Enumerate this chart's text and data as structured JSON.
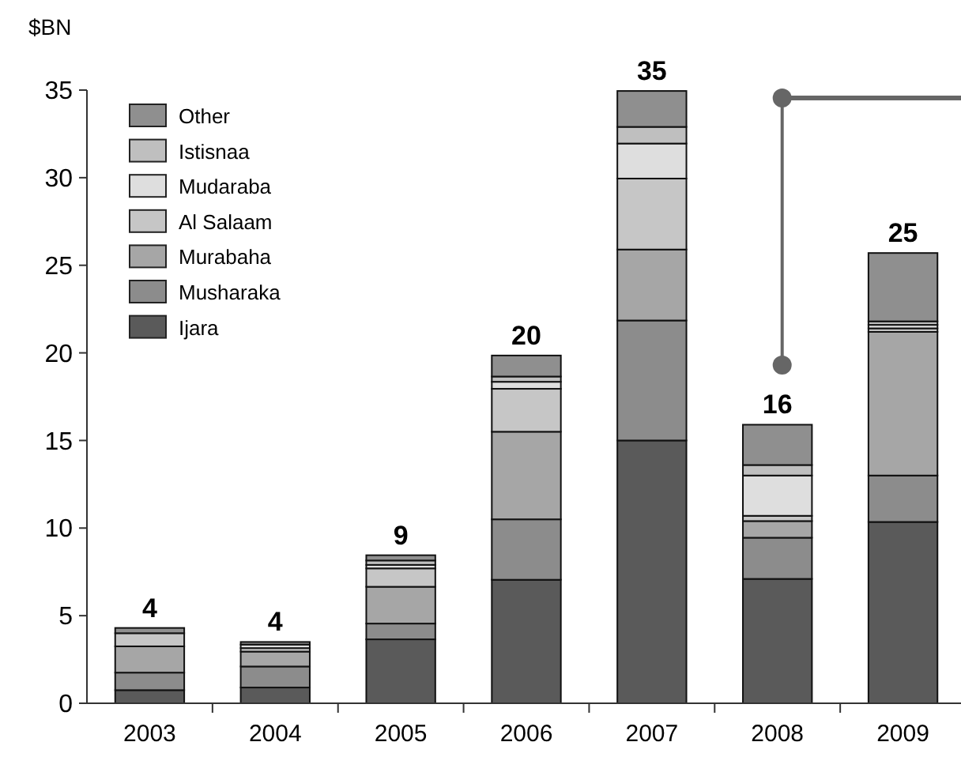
{
  "chart_data": {
    "type": "bar",
    "ylabel": "$BN",
    "stacked": true,
    "legend": "top left",
    "grid": false,
    "categories": [
      "2003",
      "2004",
      "2005",
      "2006",
      "2007",
      "2008",
      "2009"
    ],
    "ylim": [
      0,
      35
    ],
    "yticks": [
      0,
      5,
      10,
      15,
      20,
      25,
      30,
      35
    ],
    "totals": [
      "4",
      "4",
      "9",
      "20",
      "35",
      "16",
      "25"
    ],
    "series": [
      {
        "name": "Ijara",
        "color": "#5a5a5a",
        "values": [
          0.75,
          0.9,
          3.65,
          7.05,
          15,
          7.1,
          10.35
        ]
      },
      {
        "name": "Musharaka",
        "color": "#8c8c8c",
        "values": [
          1.0,
          1.2,
          0.9,
          3.45,
          6.85,
          2.35,
          2.65
        ]
      },
      {
        "name": "Murabaha",
        "color": "#a6a6a6",
        "values": [
          1.5,
          0.85,
          2.1,
          5.0,
          4.05,
          0.95,
          8.2
        ]
      },
      {
        "name": "Al Salaam",
        "color": "#c6c6c6",
        "values": [
          0.75,
          0.2,
          1.05,
          2.45,
          4.05,
          0.3,
          0.2
        ]
      },
      {
        "name": "Mudaraba",
        "color": "#dedede",
        "values": [
          0,
          0.2,
          0.2,
          0.4,
          2.0,
          2.3,
          0.2
        ]
      },
      {
        "name": "Istisnaa",
        "color": "#bfbfbf",
        "values": [
          0,
          0,
          0.25,
          0.3,
          0.95,
          0.6,
          0.2
        ]
      },
      {
        "name": "Other",
        "color": "#8f8f8f",
        "values": [
          0.3,
          0.15,
          0.3,
          1.2,
          2.05,
          2.3,
          3.9
        ]
      }
    ]
  }
}
